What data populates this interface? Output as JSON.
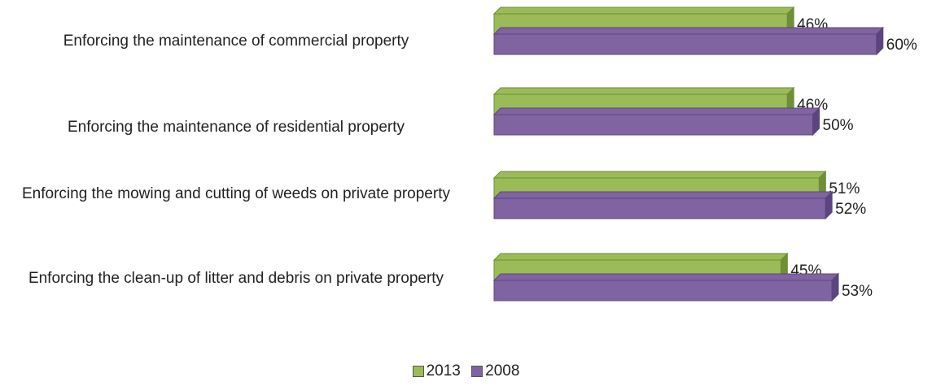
{
  "chart_data": {
    "type": "bar",
    "orientation": "horizontal",
    "categories": [
      "Enforcing the maintenance of commercial property",
      "Enforcing the maintenance of residential property",
      "Enforcing the mowing and cutting of weeds on private property",
      "Enforcing the clean-up of litter and debris on private property"
    ],
    "series": [
      {
        "name": "2013",
        "values": [
          46,
          46,
          51,
          45
        ],
        "labels": [
          "46%",
          "46%",
          "51%",
          "45%"
        ],
        "color": "#9bbb59",
        "dark": "#6e8e37"
      },
      {
        "name": "2008",
        "values": [
          60,
          50,
          52,
          53
        ],
        "labels": [
          "60%",
          "50%",
          "52%",
          "53%"
        ],
        "color": "#8064a2",
        "dark": "#5c4480"
      }
    ],
    "legend_position": "bottom",
    "grid": false,
    "xlim": [
      0,
      60
    ]
  }
}
